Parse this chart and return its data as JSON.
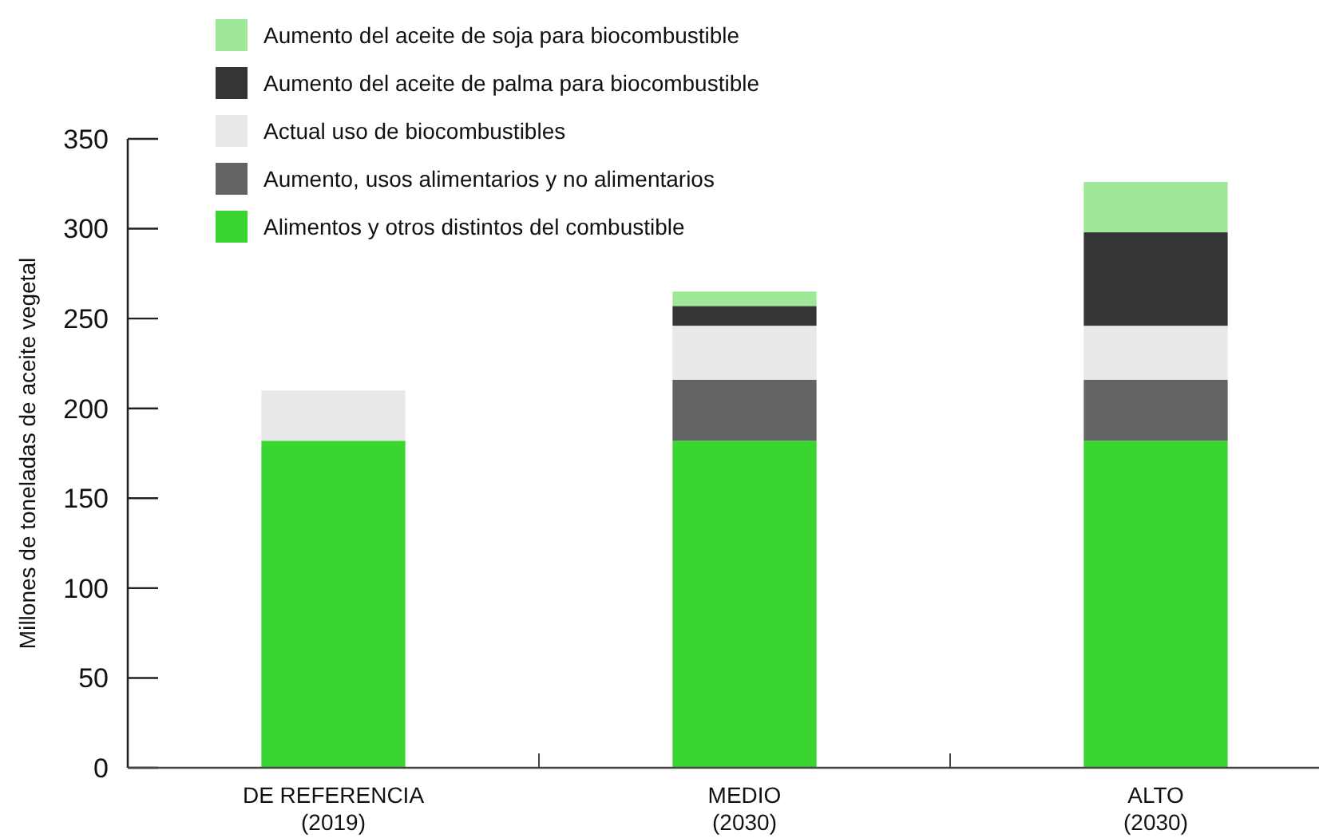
{
  "chart_data": {
    "type": "bar",
    "stacked": true,
    "ylabel": "Millones de toneladas de aceite vegetal",
    "categories": [
      "DE REFERENCIA\n(2019)",
      "MEDIO\n(2030)",
      "ALTO\n(2030)"
    ],
    "series": [
      {
        "name": "Alimentos y otros distintos del combustible",
        "color": "#39d631",
        "values": [
          182,
          182,
          182
        ]
      },
      {
        "name": "Aumento, usos alimentarios y no alimentarios",
        "color": "#646464",
        "values": [
          0,
          34,
          34
        ]
      },
      {
        "name": "Actual uso de biocombustibles",
        "color": "#e8e8e8",
        "values": [
          28,
          30,
          30
        ]
      },
      {
        "name": "Aumento del aceite de palma para biocombustible",
        "color": "#353535",
        "values": [
          null,
          11,
          52
        ]
      },
      {
        "name": "Aumento del aceite de soja para biocombustible",
        "color": "#9ee898",
        "values": [
          null,
          8,
          28
        ]
      }
    ],
    "ylim": [
      0,
      350
    ],
    "yticks": [
      0,
      50,
      100,
      150,
      200,
      250,
      300,
      350
    ],
    "grid": false,
    "legend": "top left"
  }
}
